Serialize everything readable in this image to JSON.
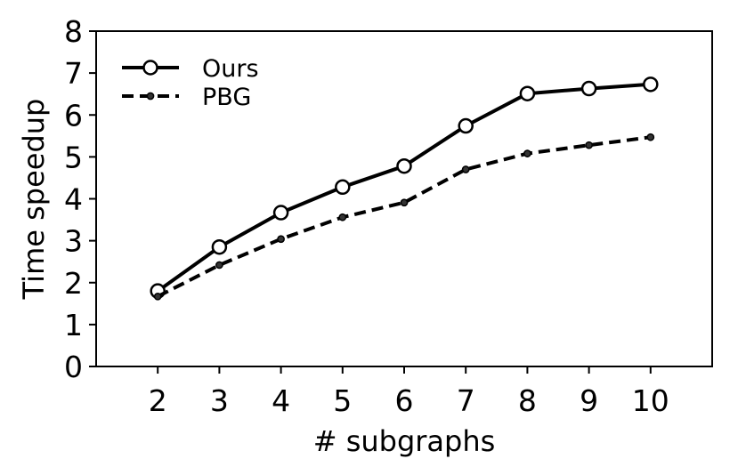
{
  "chart_data": {
    "type": "line",
    "title": "",
    "xlabel": "# subgraphs",
    "ylabel": "Time speedup",
    "x": [
      2,
      3,
      4,
      5,
      6,
      7,
      8,
      9,
      10
    ],
    "xlim": [
      1,
      11
    ],
    "ylim": [
      0,
      8
    ],
    "xticks": [
      "2",
      "3",
      "4",
      "5",
      "6",
      "7",
      "8",
      "9",
      "10"
    ],
    "yticks": [
      "0",
      "1",
      "2",
      "3",
      "4",
      "5",
      "6",
      "7",
      "8"
    ],
    "grid": false,
    "legend_position": "top-left",
    "series": [
      {
        "name": "Ours",
        "values": [
          1.8,
          2.85,
          3.67,
          4.28,
          4.78,
          5.74,
          6.51,
          6.63,
          6.73
        ],
        "style": "solid",
        "marker": "open-circle",
        "color": "#000000"
      },
      {
        "name": "PBG",
        "values": [
          1.67,
          2.42,
          3.04,
          3.56,
          3.91,
          4.7,
          5.08,
          5.28,
          5.47
        ],
        "style": "dashed",
        "marker": "small-filled-circle",
        "color": "#000000"
      }
    ]
  }
}
